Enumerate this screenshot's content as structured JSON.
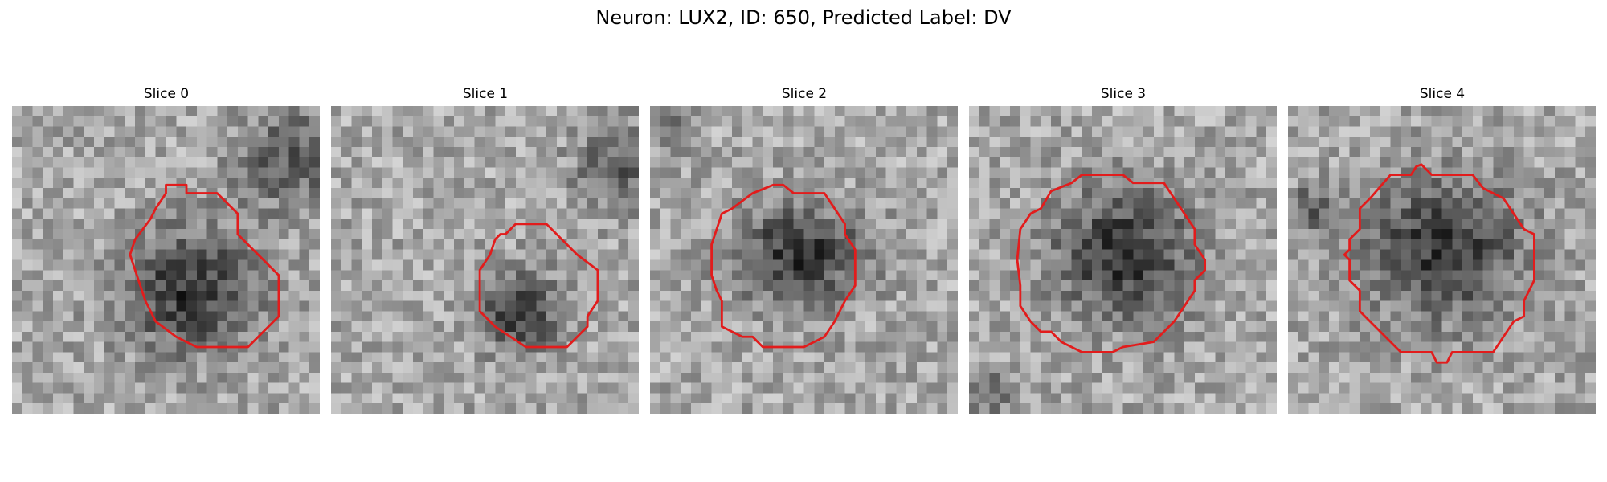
{
  "figure": {
    "title": "Neuron: LUX2, ID: 650, Predicted Label: DV"
  },
  "colors": {
    "contour": "#e21c1c",
    "background": "#ffffff"
  },
  "grid_size": 30,
  "colormap": "gray",
  "panels": [
    {
      "title": "Slice 0",
      "blob": {
        "cx": 17.5,
        "cy": 18.0,
        "rx": 6.2,
        "ry": 5.6
      },
      "dark_patch": {
        "cx": 27,
        "cy": 5,
        "r": 5
      },
      "contour": [
        [
          15,
          7.7
        ],
        [
          17,
          7.7
        ],
        [
          17,
          8.5
        ],
        [
          20,
          8.5
        ],
        [
          22,
          10.5
        ],
        [
          22,
          12.5
        ],
        [
          26,
          16.5
        ],
        [
          26,
          20.5
        ],
        [
          23,
          23.5
        ],
        [
          18,
          23.5
        ],
        [
          16,
          22.5
        ],
        [
          14,
          21
        ],
        [
          13,
          19
        ],
        [
          12,
          16
        ],
        [
          11.5,
          14.5
        ],
        [
          12,
          13
        ],
        [
          13.5,
          11
        ],
        [
          14,
          10
        ],
        [
          15,
          8.5
        ]
      ]
    },
    {
      "title": "Slice 1",
      "blob": {
        "cx": 18.5,
        "cy": 20.0,
        "rx": 3.6,
        "ry": 3.6
      },
      "dark_patch": {
        "cx": 28,
        "cy": 6,
        "r": 4
      },
      "contour": [
        [
          18,
          11.5
        ],
        [
          21,
          11.5
        ],
        [
          24,
          14.5
        ],
        [
          26,
          16
        ],
        [
          26,
          19
        ],
        [
          25,
          20.5
        ],
        [
          25,
          21.5
        ],
        [
          24,
          22.5
        ],
        [
          23,
          23.5
        ],
        [
          22,
          23.5
        ],
        [
          21,
          23.5
        ],
        [
          19,
          23.5
        ],
        [
          16,
          21.5
        ],
        [
          14.5,
          20
        ],
        [
          14.5,
          16
        ],
        [
          15.5,
          14.5
        ],
        [
          16,
          13
        ],
        [
          16.5,
          12.5
        ],
        [
          17,
          12.5
        ],
        [
          18,
          11.5
        ]
      ]
    },
    {
      "title": "Slice 2",
      "blob": {
        "cx": 14.5,
        "cy": 14.5,
        "rx": 6.0,
        "ry": 4.5
      },
      "dark_patch": {
        "cx": 2,
        "cy": 2,
        "r": 2
      },
      "contour": [
        [
          10,
          8.5
        ],
        [
          12,
          7.7
        ],
        [
          13,
          7.7
        ],
        [
          14,
          8.5
        ],
        [
          17,
          8.5
        ],
        [
          18,
          10
        ],
        [
          19,
          11.5
        ],
        [
          19,
          12.5
        ],
        [
          20,
          14
        ],
        [
          20,
          17.5
        ],
        [
          19,
          19
        ],
        [
          18,
          21
        ],
        [
          17,
          22.5
        ],
        [
          16,
          23
        ],
        [
          15,
          23.5
        ],
        [
          11,
          23.5
        ],
        [
          10,
          22.5
        ],
        [
          9,
          22.5
        ],
        [
          7,
          21.5
        ],
        [
          7,
          19
        ],
        [
          6.5,
          18
        ],
        [
          6,
          16.5
        ],
        [
          6,
          13.5
        ],
        [
          6.5,
          12
        ],
        [
          7,
          10.5
        ],
        [
          8,
          10
        ],
        [
          10,
          8.5
        ]
      ]
    },
    {
      "title": "Slice 3",
      "blob": {
        "cx": 15.0,
        "cy": 14.5,
        "rx": 6.5,
        "ry": 6.0
      },
      "dark_patch": {
        "cx": 2,
        "cy": 28,
        "r": 2
      },
      "contour": [
        [
          8,
          8.3
        ],
        [
          10,
          7.5
        ],
        [
          11,
          6.7
        ],
        [
          15,
          6.7
        ],
        [
          16,
          7.5
        ],
        [
          19,
          7.5
        ],
        [
          20,
          9
        ],
        [
          21,
          10.5
        ],
        [
          22,
          12
        ],
        [
          22,
          13.5
        ],
        [
          23,
          15
        ],
        [
          23,
          16
        ],
        [
          22,
          17
        ],
        [
          22,
          18
        ],
        [
          21,
          19.5
        ],
        [
          20,
          21
        ],
        [
          19,
          22
        ],
        [
          18,
          23
        ],
        [
          15,
          23.5
        ],
        [
          14,
          24
        ],
        [
          11,
          24
        ],
        [
          10,
          23.5
        ],
        [
          9,
          23
        ],
        [
          8,
          22
        ],
        [
          7,
          22
        ],
        [
          6,
          21
        ],
        [
          5,
          19.5
        ],
        [
          5,
          17.5
        ],
        [
          4.7,
          15
        ],
        [
          5,
          12
        ],
        [
          6,
          10.5
        ],
        [
          7,
          10
        ],
        [
          8,
          8.3
        ]
      ]
    },
    {
      "title": "Slice 4",
      "blob": {
        "cx": 15.0,
        "cy": 14.0,
        "rx": 7.0,
        "ry": 6.5
      },
      "dark_patch": {
        "cx": 2,
        "cy": 10,
        "r": 2
      },
      "contour": [
        [
          10,
          6.7
        ],
        [
          12,
          6.7
        ],
        [
          12.5,
          5.9
        ],
        [
          13,
          5.7
        ],
        [
          14,
          6.7
        ],
        [
          18,
          6.7
        ],
        [
          19,
          8
        ],
        [
          21,
          9
        ],
        [
          22,
          10.5
        ],
        [
          23,
          12
        ],
        [
          24,
          12.5
        ],
        [
          24,
          15
        ],
        [
          24,
          17
        ],
        [
          23,
          19
        ],
        [
          23,
          20.5
        ],
        [
          22,
          21
        ],
        [
          20,
          24
        ],
        [
          18,
          24
        ],
        [
          16,
          24
        ],
        [
          15.5,
          25
        ],
        [
          14.5,
          25
        ],
        [
          14,
          24
        ],
        [
          11,
          24
        ],
        [
          10,
          23
        ],
        [
          9,
          22
        ],
        [
          8,
          21
        ],
        [
          7,
          20
        ],
        [
          7,
          18
        ],
        [
          6,
          17
        ],
        [
          6,
          15
        ],
        [
          5.5,
          14.5
        ],
        [
          6,
          14
        ],
        [
          6,
          13
        ],
        [
          7,
          12
        ],
        [
          7,
          10
        ],
        [
          8,
          9
        ],
        [
          10,
          6.7
        ]
      ]
    }
  ]
}
